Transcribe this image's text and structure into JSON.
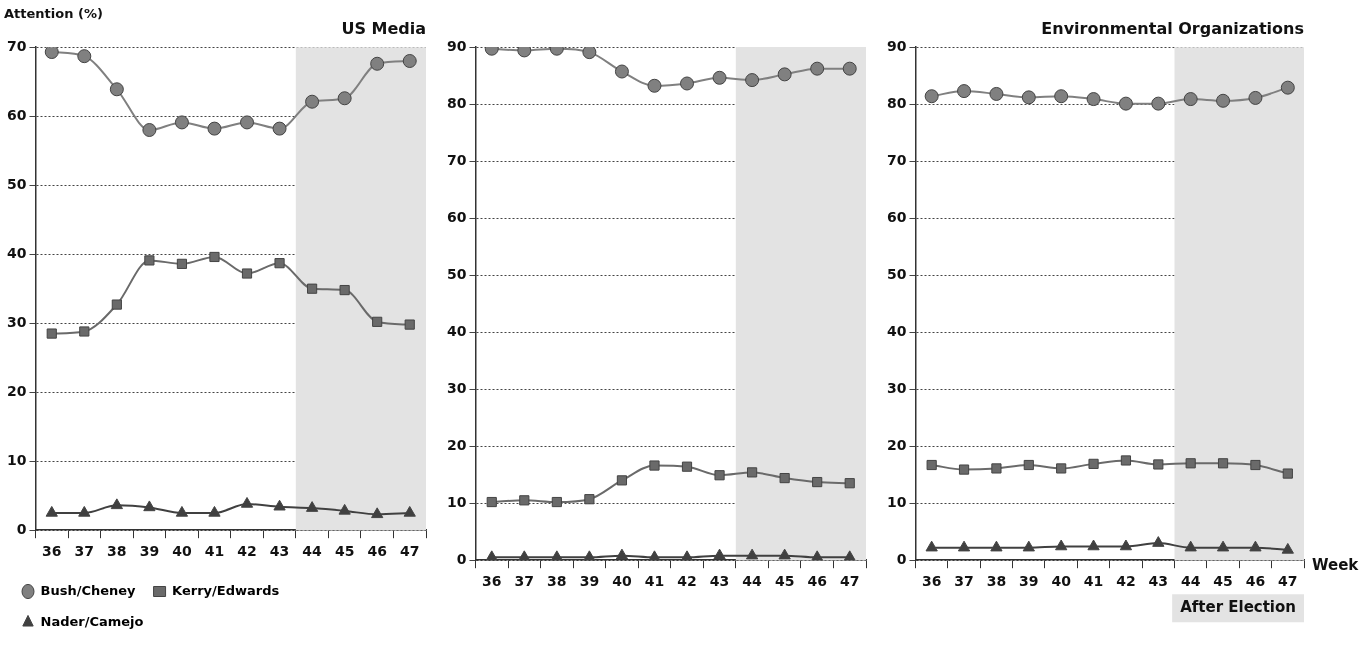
{
  "chart_data": [
    {
      "type": "line",
      "title": "US Media",
      "ylabel": "Attention (%)",
      "categories": [
        "36",
        "37",
        "38",
        "39",
        "40",
        "41",
        "42",
        "43",
        "44",
        "45",
        "46",
        "47"
      ],
      "ylim": [
        0,
        70
      ],
      "yticks": [
        0,
        10,
        20,
        30,
        40,
        50,
        60,
        70
      ],
      "grid": "y",
      "legend": "bottom",
      "series": [
        {
          "name": "Bush/Cheney",
          "color": "#808080",
          "marker": "circle",
          "values": [
            69.3,
            68.7,
            63.9,
            58.0,
            59.1,
            58.2,
            59.1,
            58.2,
            62.1,
            62.6,
            67.6,
            68.0
          ]
        },
        {
          "name": "Kerry/Edwards",
          "color": "#6a6a6a",
          "marker": "square",
          "values": [
            28.5,
            28.8,
            32.7,
            39.1,
            38.6,
            39.6,
            37.2,
            38.7,
            35.0,
            34.8,
            30.2,
            29.8
          ]
        },
        {
          "name": "Nader/Camejo",
          "color": "#404040",
          "marker": "triangle",
          "values": [
            2.5,
            2.5,
            3.6,
            3.3,
            2.5,
            2.5,
            3.8,
            3.4,
            3.2,
            2.8,
            2.3,
            2.5
          ]
        }
      ],
      "bands": [
        {
          "axis": "x",
          "from": "44",
          "to": "47",
          "color": "#e3e3e3"
        }
      ]
    },
    {
      "type": "line",
      "categories": [
        "36",
        "37",
        "38",
        "39",
        "40",
        "41",
        "42",
        "43",
        "44",
        "45",
        "46",
        "47"
      ],
      "ylim": [
        0,
        90
      ],
      "yticks": [
        0,
        10,
        20,
        30,
        40,
        50,
        60,
        70,
        80,
        90
      ],
      "grid": "y",
      "series": [
        {
          "color": "#808080",
          "marker": "circle",
          "values": [
            89.7,
            89.4,
            89.7,
            89.1,
            85.7,
            83.2,
            83.6,
            84.6,
            84.2,
            85.2,
            86.2,
            86.2
          ]
        },
        {
          "color": "#6a6a6a",
          "marker": "square",
          "values": [
            10.2,
            10.5,
            10.2,
            10.7,
            14.0,
            16.6,
            16.4,
            14.9,
            15.4,
            14.4,
            13.7,
            13.5
          ]
        },
        {
          "color": "#404040",
          "marker": "triangle",
          "values": [
            0.5,
            0.5,
            0.5,
            0.5,
            0.8,
            0.5,
            0.5,
            0.8,
            0.8,
            0.8,
            0.5,
            0.5
          ]
        }
      ],
      "bands": [
        {
          "axis": "x",
          "from": "44",
          "to": "47",
          "color": "#e3e3e3"
        }
      ]
    },
    {
      "type": "line",
      "title": "Environmental Organizations",
      "xlabel": "Week",
      "categories": [
        "36",
        "37",
        "38",
        "39",
        "40",
        "41",
        "42",
        "43",
        "44",
        "45",
        "46",
        "47"
      ],
      "ylim": [
        0,
        90
      ],
      "yticks": [
        0,
        10,
        20,
        30,
        40,
        50,
        60,
        70,
        80,
        90
      ],
      "grid": "y",
      "series": [
        {
          "color": "#808080",
          "marker": "circle",
          "values": [
            81.4,
            82.3,
            81.8,
            81.2,
            81.4,
            80.9,
            80.1,
            80.1,
            80.9,
            80.6,
            81.1,
            82.9
          ]
        },
        {
          "color": "#6a6a6a",
          "marker": "square",
          "values": [
            16.7,
            15.9,
            16.1,
            16.7,
            16.1,
            16.9,
            17.5,
            16.8,
            17.0,
            17.0,
            16.7,
            15.2
          ]
        },
        {
          "color": "#404040",
          "marker": "triangle",
          "values": [
            2.2,
            2.2,
            2.2,
            2.2,
            2.4,
            2.4,
            2.4,
            3.0,
            2.2,
            2.2,
            2.2,
            1.8
          ]
        }
      ],
      "bands": [
        {
          "axis": "x",
          "from": "44",
          "to": "47",
          "color": "#e3e3e3",
          "label": "After Election"
        }
      ]
    }
  ]
}
